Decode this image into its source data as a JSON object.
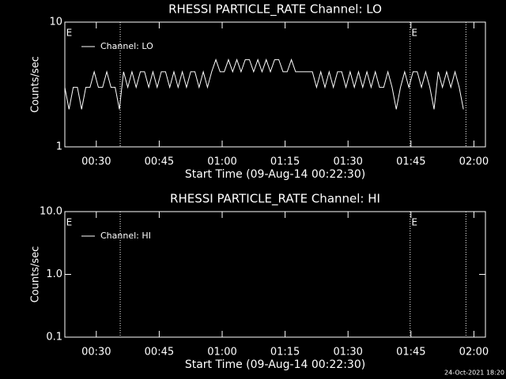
{
  "chart_data": [
    {
      "type": "line",
      "title": "RHESSI PARTICLE_RATE Channel: LO",
      "xlabel": "Start Time (09-Aug-14 00:22:30)",
      "ylabel": "Counts/sec",
      "log_y": true,
      "ylim": [
        1,
        10
      ],
      "yticks": [
        1,
        10
      ],
      "xlim": [
        0,
        100.25
      ],
      "xticks": [
        {
          "value": 7.5,
          "label": "00:30"
        },
        {
          "value": 22.5,
          "label": "00:45"
        },
        {
          "value": 37.5,
          "label": "01:00"
        },
        {
          "value": 52.5,
          "label": "01:15"
        },
        {
          "value": 67.5,
          "label": "01:30"
        },
        {
          "value": 82.5,
          "label": "01:45"
        },
        {
          "value": 97.5,
          "label": "02:00"
        }
      ],
      "x": [
        0,
        1,
        2,
        3,
        4,
        5,
        6,
        7,
        8,
        9,
        10,
        11,
        12,
        13,
        14,
        15,
        16,
        17,
        18,
        19,
        20,
        21,
        22,
        23,
        24,
        25,
        26,
        27,
        28,
        29,
        30,
        31,
        32,
        33,
        34,
        35,
        36,
        37,
        38,
        39,
        40,
        41,
        42,
        43,
        44,
        45,
        46,
        47,
        48,
        49,
        50,
        51,
        52,
        53,
        54,
        55,
        56,
        57,
        58,
        59,
        60,
        61,
        62,
        63,
        64,
        65,
        66,
        67,
        68,
        69,
        70,
        71,
        72,
        73,
        74,
        75,
        76,
        77,
        78,
        79,
        80,
        81,
        82,
        83,
        84,
        85,
        86,
        87,
        88,
        89,
        90,
        91,
        92,
        93,
        94,
        95
      ],
      "series": [
        {
          "name": "Channel: LO",
          "color": "#ffffff",
          "values": [
            3,
            2,
            3,
            3,
            2,
            3,
            3,
            4,
            3,
            3,
            4,
            3,
            3,
            2,
            4,
            3,
            4,
            3,
            4,
            4,
            3,
            4,
            3,
            4,
            4,
            3,
            4,
            3,
            4,
            3,
            4,
            4,
            3,
            4,
            3,
            4,
            5,
            4,
            4,
            5,
            4,
            5,
            4,
            5,
            5,
            4,
            5,
            4,
            5,
            4,
            5,
            5,
            4,
            4,
            5,
            4,
            4,
            4,
            4,
            4,
            3,
            4,
            3,
            4,
            3,
            4,
            4,
            3,
            4,
            3,
            4,
            3,
            4,
            3,
            4,
            3,
            3,
            4,
            3,
            2,
            3,
            4,
            3,
            4,
            4,
            3,
            4,
            3,
            2,
            4,
            3,
            4,
            3,
            4,
            3,
            2
          ]
        }
      ],
      "event_lines": [
        13.2,
        82.3,
        95.6
      ],
      "annotations": [
        {
          "text": "E",
          "x": 0.3
        },
        {
          "text": "E",
          "x": 82.6
        }
      ]
    },
    {
      "type": "line",
      "title": "RHESSI PARTICLE_RATE Channel: HI",
      "xlabel": "Start Time (09-Aug-14 00:22:30)",
      "ylabel": "Counts/sec",
      "log_y": true,
      "ylim": [
        0.1,
        10
      ],
      "yticks": [
        0.1,
        {
          "value": 1,
          "label": "1.0"
        },
        {
          "value": 10,
          "label": "10.0"
        }
      ],
      "xlim": [
        0,
        100.25
      ],
      "xticks": [
        {
          "value": 7.5,
          "label": "00:30"
        },
        {
          "value": 22.5,
          "label": "00:45"
        },
        {
          "value": 37.5,
          "label": "01:00"
        },
        {
          "value": 52.5,
          "label": "01:15"
        },
        {
          "value": 67.5,
          "label": "01:30"
        },
        {
          "value": 82.5,
          "label": "01:45"
        },
        {
          "value": 97.5,
          "label": "02:00"
        }
      ],
      "x": [],
      "series": [
        {
          "name": "Channel: HI",
          "color": "#ffffff",
          "values": []
        }
      ],
      "event_lines": [
        13.2,
        82.3,
        95.6
      ],
      "annotations": [
        {
          "text": "E",
          "x": 0.3
        },
        {
          "text": "E",
          "x": 82.6
        }
      ]
    }
  ],
  "footer": "24-Oct-2021 18:20"
}
